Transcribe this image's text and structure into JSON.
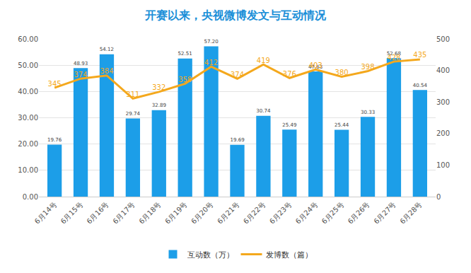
{
  "chart_data": {
    "type": "bar",
    "title": "开赛以来，央视微博发文与互动情况",
    "categories": [
      "6月14号",
      "6月15号",
      "6月16号",
      "6月17号",
      "6月18号",
      "6月19号",
      "6月20号",
      "6月21号",
      "6月22号",
      "6月23号",
      "6月24号",
      "6月25号",
      "6月26号",
      "6月27号",
      "6月28号"
    ],
    "series": [
      {
        "name": "互动数（万）",
        "type": "bar",
        "color": "#1c9ee8",
        "values": [
          19.76,
          48.93,
          54.12,
          29.74,
          32.89,
          52.51,
          57.2,
          19.69,
          30.74,
          25.49,
          47.63,
          25.44,
          30.33,
          52.68,
          40.54
        ],
        "value_labels": [
          "19.76",
          "48.93",
          "54.12",
          "29.74",
          "32.89",
          "52.51",
          "57.20",
          "19.69",
          "30.74",
          "25.49",
          "47.63",
          "25.44",
          "30.33",
          "52.68",
          "40.54"
        ]
      },
      {
        "name": "发博数（篇）",
        "type": "line",
        "axis": "y2",
        "color": "#f4a81d",
        "values": [
          345,
          374,
          384,
          311,
          332,
          358,
          412,
          374,
          419,
          376,
          403,
          380,
          398,
          428,
          435
        ]
      }
    ],
    "ylim": [
      0,
      60
    ],
    "yticks": [
      {
        "value": 0,
        "label": "0.00"
      },
      {
        "value": 10,
        "label": "10.00"
      },
      {
        "value": 20,
        "label": "20.00"
      },
      {
        "value": 30,
        "label": "30.00"
      },
      {
        "value": 40,
        "label": "40.00"
      },
      {
        "value": 50,
        "label": "50.00"
      },
      {
        "value": 60,
        "label": "60.00"
      }
    ],
    "y2lim": [
      0,
      500
    ],
    "y2ticks": [
      0,
      100,
      200,
      300,
      400,
      500
    ],
    "grid": true,
    "legend": "bottom",
    "data_labels": true
  }
}
